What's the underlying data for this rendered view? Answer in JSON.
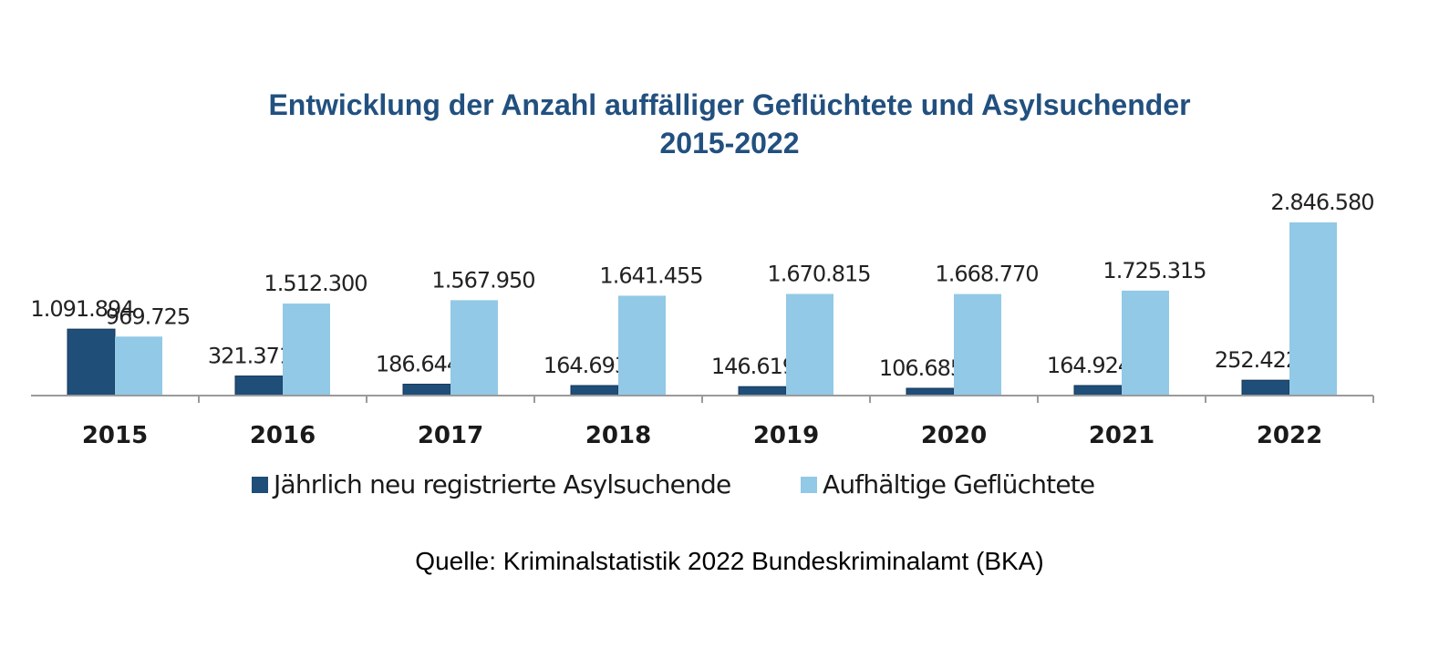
{
  "chart_data": {
    "type": "bar",
    "title": "Entwicklung der Anzahl auffälliger Geflüchtete und Asylsuchender",
    "subtitle": "2015-2022",
    "xlabel": "",
    "ylabel": "",
    "categories": [
      "2015",
      "2016",
      "2017",
      "2018",
      "2019",
      "2020",
      "2021",
      "2022"
    ],
    "series": [
      {
        "name": "Jährlich neu registrierte Asylsuchende",
        "color": "#1f4e79",
        "values": [
          1091894,
          321371,
          186644,
          164693,
          146619,
          106685,
          164924,
          252422
        ],
        "labels": [
          "1.091.894",
          "321.371",
          "186.644",
          "164.693",
          "146.619",
          "106.685",
          "164.924",
          "252.422"
        ]
      },
      {
        "name": "Aufhältige Geflüchtete",
        "color": "#92c9e6",
        "values": [
          969725,
          1512300,
          1567950,
          1641455,
          1670815,
          1668770,
          1725315,
          2846580
        ],
        "labels": [
          "969.725",
          "1.512.300",
          "1.567.950",
          "1.641.455",
          "1.670.815",
          "1.668.770",
          "1.725.315",
          "2.846.580"
        ]
      }
    ],
    "ylim": [
      0,
      2846580
    ],
    "grid": false,
    "legend": "bottom"
  },
  "source": "Quelle: Kriminalstatistik 2022 Bundeskriminalamt (BKA)"
}
